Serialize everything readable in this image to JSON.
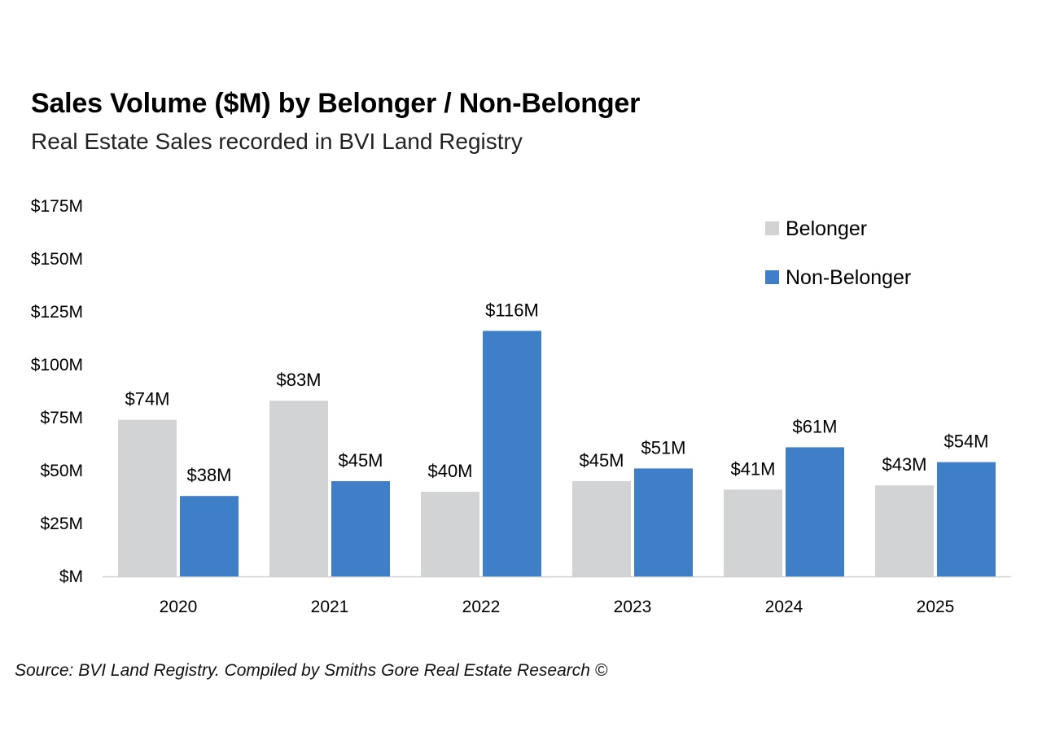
{
  "chart_data": {
    "type": "bar",
    "title": "Sales Volume ($M) by Belonger / Non-Belonger",
    "subtitle": "Real Estate Sales recorded in BVI Land Registry",
    "categories": [
      "2020",
      "2021",
      "2022",
      "2023",
      "2024",
      "2025"
    ],
    "series": [
      {
        "name": "Belonger",
        "color": "#d2d3d5",
        "values": [
          74,
          83,
          40,
          45,
          41,
          43
        ],
        "labels": [
          "$74M",
          "$83M",
          "$40M",
          "$45M",
          "$41M",
          "$43M"
        ]
      },
      {
        "name": "Non-Belonger",
        "color": "#3f7fc7",
        "values": [
          38,
          45,
          116,
          51,
          61,
          54
        ],
        "labels": [
          "$38M",
          "$45M",
          "$116M",
          "$51M",
          "$61M",
          "$54M"
        ]
      }
    ],
    "ylim": [
      0,
      175
    ],
    "yticks": [
      0,
      25,
      50,
      75,
      100,
      125,
      150,
      175
    ],
    "ytick_labels": [
      "$M",
      "$25M",
      "$50M",
      "$75M",
      "$100M",
      "$125M",
      "$150M",
      "$175M"
    ],
    "xlabel": "",
    "ylabel": "",
    "legend_position": "top-right",
    "grid": false
  },
  "source": "Source: BVI Land Registry. Compiled by Smiths Gore Real Estate Research ©"
}
